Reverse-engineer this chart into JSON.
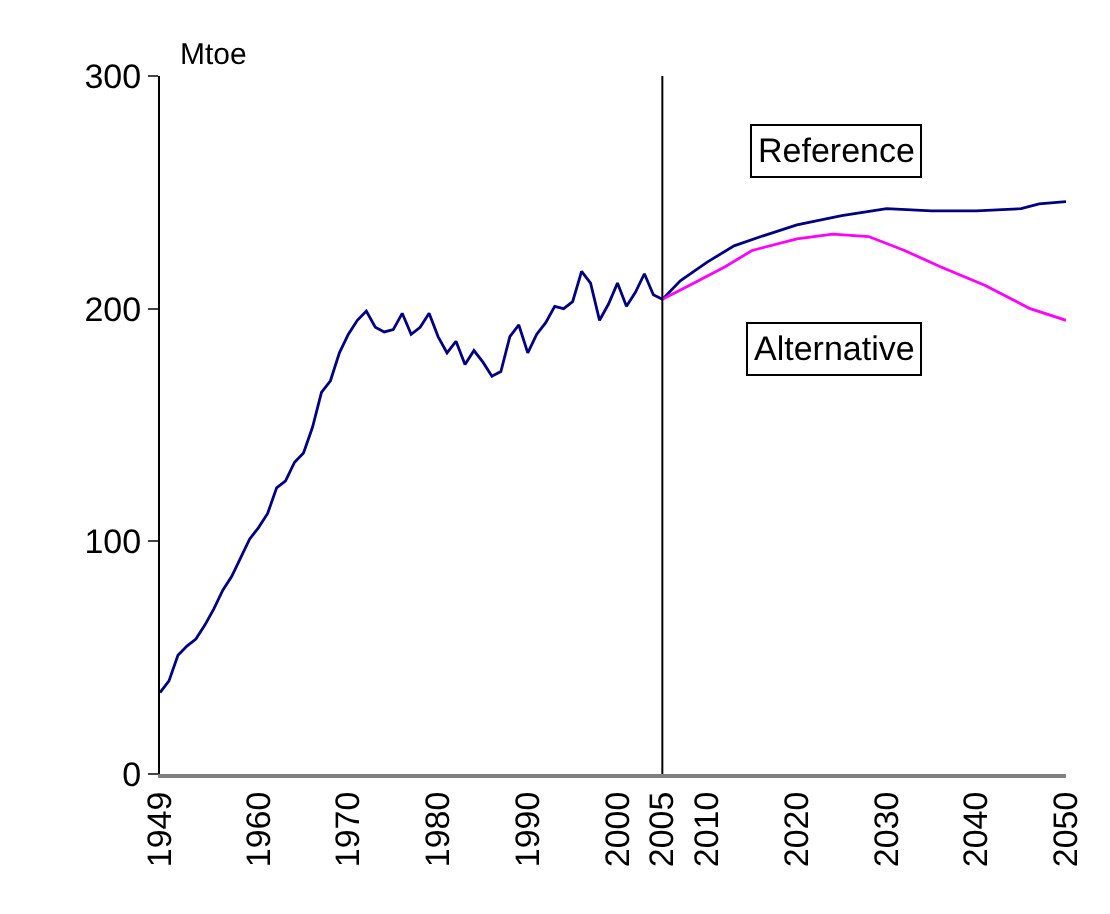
{
  "chart_data": {
    "type": "line",
    "ylabel": "Mtoe",
    "xlim": [
      1949,
      2050
    ],
    "xticks": [
      1949,
      1960,
      1970,
      1980,
      1990,
      2000,
      2005,
      2010,
      2020,
      2030,
      2040,
      2050
    ],
    "ylim": [
      0,
      300
    ],
    "yticks": [
      0,
      100,
      200,
      300
    ],
    "grid": false,
    "legend": false,
    "series": [
      {
        "color": "#000080",
        "x": [
          1949,
          1950,
          1951,
          1952,
          1953,
          1954,
          1955,
          1956,
          1957,
          1958,
          1959,
          1960,
          1961,
          1962,
          1963,
          1964,
          1965,
          1966,
          1967,
          1968,
          1969,
          1970,
          1971,
          1972,
          1973,
          1974,
          1975,
          1976,
          1977,
          1978,
          1979,
          1980,
          1981,
          1982,
          1983,
          1984,
          1985,
          1986,
          1987,
          1988,
          1989,
          1990,
          1991,
          1992,
          1993,
          1994,
          1995,
          1996,
          1997,
          1998,
          1999,
          2000,
          2001,
          2002,
          2003,
          2004,
          2005
        ],
        "values": [
          35,
          40,
          51,
          55,
          58,
          64,
          71,
          79,
          85,
          93,
          101,
          106,
          112,
          123,
          126,
          134,
          138,
          149,
          164,
          169,
          181,
          189,
          195,
          199,
          192,
          190,
          191,
          198,
          189,
          192,
          198,
          188,
          181,
          186,
          176,
          182,
          177,
          171,
          173,
          188,
          193,
          181,
          189,
          194,
          201,
          200,
          203,
          216,
          211,
          195,
          202,
          211,
          201,
          207,
          215,
          206,
          204
        ]
      },
      {
        "name": "Reference",
        "color": "#000080",
        "x": [
          2005,
          2007,
          2010,
          2013,
          2016,
          2020,
          2025,
          2030,
          2035,
          2040,
          2045,
          2047,
          2050
        ],
        "values": [
          204,
          212,
          220,
          227,
          231,
          236,
          240,
          243,
          242,
          242,
          243,
          245,
          246
        ]
      },
      {
        "name": "Alternative",
        "color": "#ff00ff",
        "x": [
          2005,
          2008,
          2012,
          2015,
          2020,
          2024,
          2028,
          2032,
          2036,
          2041,
          2046,
          2050
        ],
        "values": [
          204,
          210,
          218,
          225,
          230,
          232,
          231,
          225,
          218,
          210,
          200,
          195
        ]
      }
    ],
    "ref_lines": [
      {
        "axis": "x",
        "value": 2005,
        "color": "#000000"
      }
    ]
  }
}
